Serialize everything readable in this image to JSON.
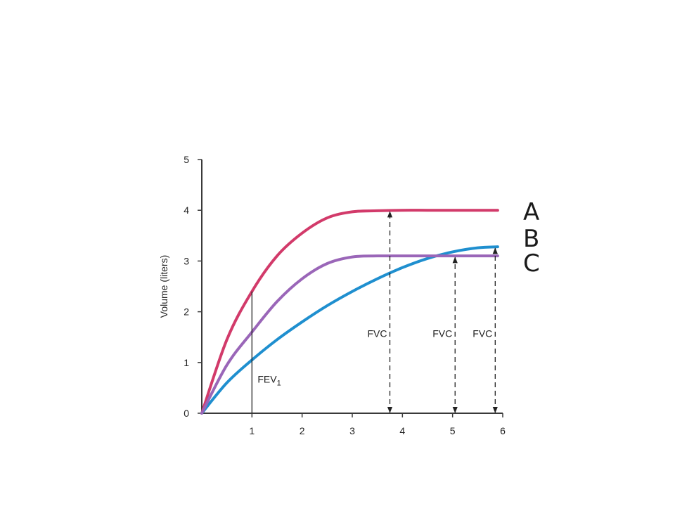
{
  "chart_data": {
    "type": "line",
    "ylabel": "Volume (liters)",
    "xlabel": "",
    "xlim": [
      0,
      6
    ],
    "ylim": [
      0,
      5
    ],
    "x_ticks": [
      "1",
      "2",
      "3",
      "4",
      "5",
      "6"
    ],
    "y_ticks": [
      "0",
      "1",
      "2",
      "3",
      "4",
      "5"
    ],
    "grid": false,
    "series": [
      {
        "name": "A",
        "color": "#d23a6a",
        "x": [
          0,
          0.5,
          1,
          1.5,
          2,
          2.5,
          3,
          3.5,
          4,
          4.5,
          5,
          5.5,
          5.9
        ],
        "y": [
          0,
          1.45,
          2.4,
          3.1,
          3.55,
          3.85,
          3.97,
          3.99,
          4.0,
          4.0,
          4.0,
          4.0,
          4.0
        ]
      },
      {
        "name": "B",
        "color": "#1f8fcf",
        "x": [
          0,
          0.5,
          1,
          1.5,
          2,
          2.5,
          3,
          3.5,
          4,
          4.5,
          5,
          5.5,
          5.9
        ],
        "y": [
          0,
          0.6,
          1.05,
          1.45,
          1.8,
          2.12,
          2.4,
          2.65,
          2.87,
          3.05,
          3.18,
          3.26,
          3.28
        ]
      },
      {
        "name": "C",
        "color": "#9a66b8",
        "x": [
          0,
          0.5,
          1,
          1.5,
          2,
          2.5,
          3,
          3.5,
          4,
          4.5,
          5,
          5.5,
          5.9
        ],
        "y": [
          0,
          0.95,
          1.6,
          2.2,
          2.65,
          2.95,
          3.08,
          3.1,
          3.1,
          3.1,
          3.1,
          3.1,
          3.1
        ]
      }
    ],
    "annotations": {
      "fev1": {
        "label": "FEV",
        "subscript": "1",
        "x": 1
      },
      "fvc_markers": [
        {
          "label": "FVC",
          "x": 3.75,
          "y": 4.0
        },
        {
          "label": "FVC",
          "x": 5.05,
          "y": 3.1
        },
        {
          "label": "FVC",
          "x": 5.85,
          "y": 3.28
        }
      ]
    }
  }
}
